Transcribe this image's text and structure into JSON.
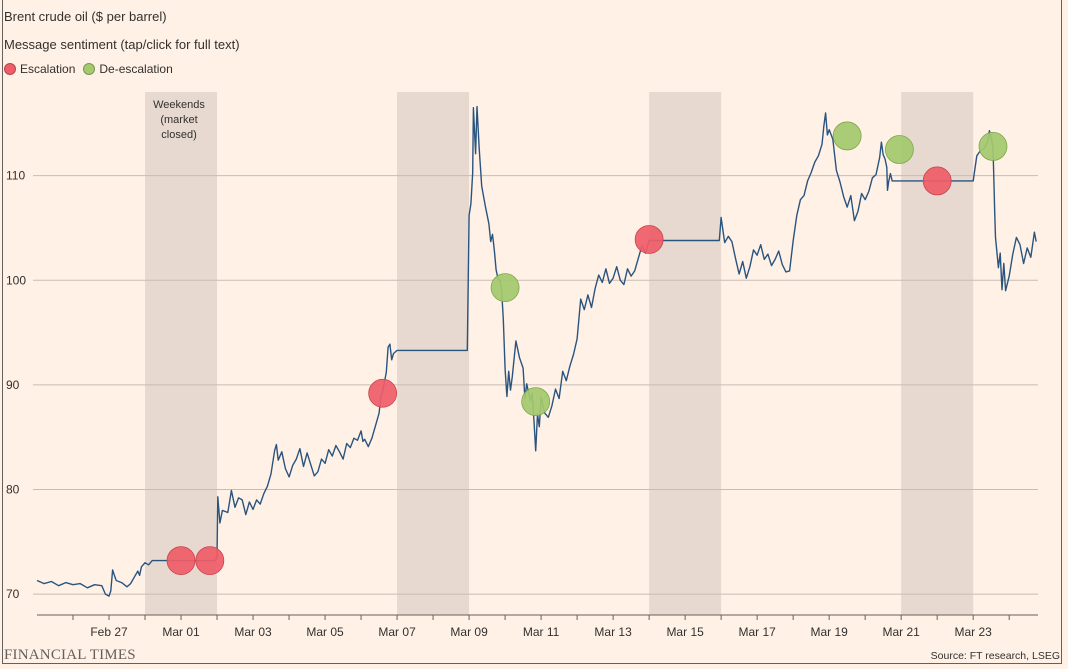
{
  "title": "Brent crude oil ($ per barrel)",
  "subtitle": "Message sentiment (tap/click for full text)",
  "legend": {
    "escalation_label": "Escalation",
    "deescalation_label": "De-escalation",
    "escalation_color": "#ef5d68",
    "deescalation_color": "#a4c96e"
  },
  "weekend_label": [
    "Weekends",
    "(market",
    "closed)"
  ],
  "brand": "FINANCIAL TIMES",
  "source": "Source: FT research, LSEG",
  "chart_data": {
    "type": "line",
    "title": "Brent crude oil ($ per barrel)",
    "xlabel": "",
    "ylabel": "",
    "x_unit": "days since Feb 26",
    "xlim": [
      -1.0,
      26.8
    ],
    "ylim": [
      68,
      118
    ],
    "grid": true,
    "y_ticks": [
      70,
      80,
      90,
      100,
      110
    ],
    "x_ticks": [
      {
        "t": 1,
        "label": "Feb 27"
      },
      {
        "t": 3,
        "label": "Mar 01"
      },
      {
        "t": 5,
        "label": "Mar 03"
      },
      {
        "t": 7,
        "label": "Mar 05"
      },
      {
        "t": 9,
        "label": "Mar 07"
      },
      {
        "t": 11,
        "label": "Mar 09"
      },
      {
        "t": 13,
        "label": "Mar 11"
      },
      {
        "t": 15,
        "label": "Mar 13"
      },
      {
        "t": 17,
        "label": "Mar 15"
      },
      {
        "t": 19,
        "label": "Mar 17"
      },
      {
        "t": 21,
        "label": "Mar 19"
      },
      {
        "t": 23,
        "label": "Mar 21"
      },
      {
        "t": 25,
        "label": "Mar 23"
      }
    ],
    "weekends": [
      [
        2.0,
        4.0
      ],
      [
        9.0,
        11.0
      ],
      [
        16.0,
        18.0
      ],
      [
        23.0,
        25.0
      ]
    ],
    "series": [
      {
        "name": "Brent crude oil",
        "color": "#2a5480",
        "points": [
          [
            -1.0,
            71.3
          ],
          [
            -0.8,
            71.0
          ],
          [
            -0.6,
            71.2
          ],
          [
            -0.4,
            70.8
          ],
          [
            -0.2,
            71.1
          ],
          [
            0.0,
            70.9
          ],
          [
            0.2,
            71.0
          ],
          [
            0.4,
            70.6
          ],
          [
            0.6,
            70.9
          ],
          [
            0.8,
            70.8
          ],
          [
            0.9,
            70.0
          ],
          [
            1.0,
            69.8
          ],
          [
            1.05,
            70.3
          ],
          [
            1.1,
            72.3
          ],
          [
            1.15,
            71.8
          ],
          [
            1.2,
            71.3
          ],
          [
            1.35,
            71.1
          ],
          [
            1.5,
            70.7
          ],
          [
            1.6,
            71.0
          ],
          [
            1.7,
            71.6
          ],
          [
            1.8,
            72.2
          ],
          [
            1.85,
            71.8
          ],
          [
            1.9,
            72.6
          ],
          [
            2.0,
            73.0
          ],
          [
            2.1,
            72.8
          ],
          [
            2.2,
            73.2
          ],
          [
            2.25,
            73.2
          ],
          [
            3.95,
            73.2
          ],
          [
            4.0,
            73.5
          ],
          [
            4.02,
            79.3
          ],
          [
            4.08,
            76.8
          ],
          [
            4.15,
            78.0
          ],
          [
            4.3,
            77.8
          ],
          [
            4.4,
            79.9
          ],
          [
            4.5,
            78.3
          ],
          [
            4.6,
            79.2
          ],
          [
            4.7,
            79.0
          ],
          [
            4.8,
            77.6
          ],
          [
            4.9,
            78.8
          ],
          [
            5.0,
            78.1
          ],
          [
            5.1,
            79.0
          ],
          [
            5.2,
            78.6
          ],
          [
            5.3,
            79.6
          ],
          [
            5.4,
            80.3
          ],
          [
            5.5,
            81.5
          ],
          [
            5.6,
            83.7
          ],
          [
            5.65,
            84.3
          ],
          [
            5.7,
            82.8
          ],
          [
            5.8,
            83.6
          ],
          [
            5.9,
            82.0
          ],
          [
            6.0,
            81.2
          ],
          [
            6.1,
            82.3
          ],
          [
            6.2,
            82.9
          ],
          [
            6.3,
            83.9
          ],
          [
            6.4,
            82.2
          ],
          [
            6.5,
            83.5
          ],
          [
            6.6,
            82.4
          ],
          [
            6.7,
            81.3
          ],
          [
            6.8,
            81.7
          ],
          [
            6.9,
            82.9
          ],
          [
            7.0,
            82.5
          ],
          [
            7.1,
            83.8
          ],
          [
            7.2,
            83.2
          ],
          [
            7.3,
            84.2
          ],
          [
            7.4,
            83.6
          ],
          [
            7.5,
            82.9
          ],
          [
            7.6,
            84.4
          ],
          [
            7.7,
            84.0
          ],
          [
            7.8,
            84.9
          ],
          [
            7.9,
            84.7
          ],
          [
            8.0,
            85.6
          ],
          [
            8.05,
            84.6
          ],
          [
            8.1,
            84.8
          ],
          [
            8.2,
            84.1
          ],
          [
            8.3,
            84.9
          ],
          [
            8.4,
            86.1
          ],
          [
            8.5,
            87.3
          ],
          [
            8.55,
            88.9
          ],
          [
            8.6,
            89.4
          ],
          [
            8.7,
            91.2
          ],
          [
            8.75,
            93.6
          ],
          [
            8.8,
            93.9
          ],
          [
            8.85,
            92.4
          ],
          [
            8.9,
            93.0
          ],
          [
            9.0,
            93.3
          ],
          [
            10.95,
            93.3
          ],
          [
            11.0,
            106.2
          ],
          [
            11.05,
            107.3
          ],
          [
            11.1,
            110.3
          ],
          [
            11.12,
            116.5
          ],
          [
            11.18,
            112.1
          ],
          [
            11.22,
            116.6
          ],
          [
            11.28,
            112.6
          ],
          [
            11.35,
            109.0
          ],
          [
            11.45,
            107.1
          ],
          [
            11.55,
            105.4
          ],
          [
            11.6,
            103.7
          ],
          [
            11.65,
            104.4
          ],
          [
            11.7,
            102.9
          ],
          [
            11.75,
            101.0
          ],
          [
            11.8,
            100.2
          ],
          [
            11.85,
            100.0
          ],
          [
            11.9,
            99.2
          ],
          [
            11.95,
            96.3
          ],
          [
            12.0,
            91.5
          ],
          [
            12.05,
            88.9
          ],
          [
            12.1,
            91.3
          ],
          [
            12.15,
            89.5
          ],
          [
            12.2,
            90.8
          ],
          [
            12.3,
            94.2
          ],
          [
            12.4,
            92.6
          ],
          [
            12.5,
            91.6
          ],
          [
            12.55,
            88.7
          ],
          [
            12.6,
            90.1
          ],
          [
            12.7,
            88.5
          ],
          [
            12.75,
            89.2
          ],
          [
            12.8,
            86.7
          ],
          [
            12.85,
            83.7
          ],
          [
            12.9,
            87.2
          ],
          [
            12.95,
            86.0
          ],
          [
            13.0,
            88.8
          ],
          [
            13.1,
            87.3
          ],
          [
            13.2,
            86.9
          ],
          [
            13.3,
            88.0
          ],
          [
            13.4,
            89.6
          ],
          [
            13.5,
            88.7
          ],
          [
            13.6,
            91.3
          ],
          [
            13.7,
            90.4
          ],
          [
            13.8,
            91.8
          ],
          [
            13.9,
            92.9
          ],
          [
            14.0,
            94.4
          ],
          [
            14.1,
            98.2
          ],
          [
            14.2,
            97.2
          ],
          [
            14.3,
            98.6
          ],
          [
            14.4,
            97.4
          ],
          [
            14.5,
            99.2
          ],
          [
            14.6,
            100.5
          ],
          [
            14.7,
            99.8
          ],
          [
            14.8,
            101.1
          ],
          [
            14.9,
            99.7
          ],
          [
            15.0,
            100.2
          ],
          [
            15.1,
            101.3
          ],
          [
            15.2,
            100.0
          ],
          [
            15.3,
            99.6
          ],
          [
            15.4,
            101.1
          ],
          [
            15.5,
            100.4
          ],
          [
            15.6,
            100.9
          ],
          [
            15.7,
            102.1
          ],
          [
            15.8,
            103.3
          ],
          [
            15.9,
            102.6
          ],
          [
            16.0,
            103.8
          ],
          [
            17.95,
            103.8
          ],
          [
            18.0,
            106.0
          ],
          [
            18.05,
            104.8
          ],
          [
            18.1,
            103.6
          ],
          [
            18.2,
            104.2
          ],
          [
            18.3,
            103.7
          ],
          [
            18.4,
            102.1
          ],
          [
            18.5,
            100.6
          ],
          [
            18.6,
            101.8
          ],
          [
            18.7,
            100.2
          ],
          [
            18.8,
            101.3
          ],
          [
            18.9,
            102.9
          ],
          [
            19.0,
            102.4
          ],
          [
            19.1,
            103.4
          ],
          [
            19.2,
            102.0
          ],
          [
            19.3,
            102.5
          ],
          [
            19.4,
            101.4
          ],
          [
            19.5,
            102.0
          ],
          [
            19.6,
            102.8
          ],
          [
            19.7,
            101.5
          ],
          [
            19.8,
            100.8
          ],
          [
            19.9,
            100.9
          ],
          [
            20.0,
            103.8
          ],
          [
            20.1,
            106.2
          ],
          [
            20.2,
            107.7
          ],
          [
            20.3,
            108.1
          ],
          [
            20.4,
            109.5
          ],
          [
            20.5,
            110.3
          ],
          [
            20.6,
            111.3
          ],
          [
            20.7,
            111.9
          ],
          [
            20.8,
            113.0
          ],
          [
            20.85,
            114.7
          ],
          [
            20.9,
            116.0
          ],
          [
            20.95,
            113.9
          ],
          [
            21.0,
            114.4
          ],
          [
            21.1,
            113.5
          ],
          [
            21.2,
            110.5
          ],
          [
            21.3,
            109.4
          ],
          [
            21.4,
            108.0
          ],
          [
            21.5,
            107.0
          ],
          [
            21.6,
            108.1
          ],
          [
            21.7,
            105.7
          ],
          [
            21.8,
            106.6
          ],
          [
            21.9,
            108.3
          ],
          [
            22.0,
            107.7
          ],
          [
            22.1,
            108.5
          ],
          [
            22.2,
            109.8
          ],
          [
            22.3,
            110.1
          ],
          [
            22.4,
            111.7
          ],
          [
            22.45,
            113.2
          ],
          [
            22.5,
            112.0
          ],
          [
            22.55,
            111.6
          ],
          [
            22.6,
            110.8
          ],
          [
            22.62,
            108.6
          ],
          [
            22.65,
            109.4
          ],
          [
            22.7,
            110.2
          ],
          [
            22.75,
            109.5
          ],
          [
            25.0,
            109.5
          ],
          [
            25.1,
            111.9
          ],
          [
            25.2,
            112.4
          ],
          [
            25.3,
            112.6
          ],
          [
            25.4,
            113.2
          ],
          [
            25.45,
            114.3
          ],
          [
            25.5,
            113.6
          ],
          [
            25.55,
            112.7
          ],
          [
            25.6,
            106.2
          ],
          [
            25.62,
            104.1
          ],
          [
            25.7,
            101.2
          ],
          [
            25.75,
            102.6
          ],
          [
            25.8,
            99.1
          ],
          [
            25.85,
            101.6
          ],
          [
            25.9,
            99.0
          ],
          [
            26.0,
            100.4
          ],
          [
            26.1,
            102.5
          ],
          [
            26.2,
            104.1
          ],
          [
            26.3,
            103.4
          ],
          [
            26.4,
            101.6
          ],
          [
            26.5,
            103.1
          ],
          [
            26.6,
            102.2
          ],
          [
            26.7,
            104.6
          ],
          [
            26.75,
            103.7
          ]
        ]
      }
    ],
    "messages": [
      {
        "t": 3.0,
        "y": 73.2,
        "sentiment": "escalation"
      },
      {
        "t": 3.8,
        "y": 73.2,
        "sentiment": "escalation"
      },
      {
        "t": 8.6,
        "y": 89.2,
        "sentiment": "escalation"
      },
      {
        "t": 12.0,
        "y": 99.3,
        "sentiment": "de-escalation"
      },
      {
        "t": 12.85,
        "y": 88.4,
        "sentiment": "de-escalation"
      },
      {
        "t": 16.0,
        "y": 103.9,
        "sentiment": "escalation"
      },
      {
        "t": 21.5,
        "y": 113.8,
        "sentiment": "de-escalation"
      },
      {
        "t": 22.95,
        "y": 112.5,
        "sentiment": "de-escalation"
      },
      {
        "t": 24.0,
        "y": 109.5,
        "sentiment": "escalation"
      },
      {
        "t": 25.55,
        "y": 112.8,
        "sentiment": "de-escalation"
      }
    ]
  }
}
